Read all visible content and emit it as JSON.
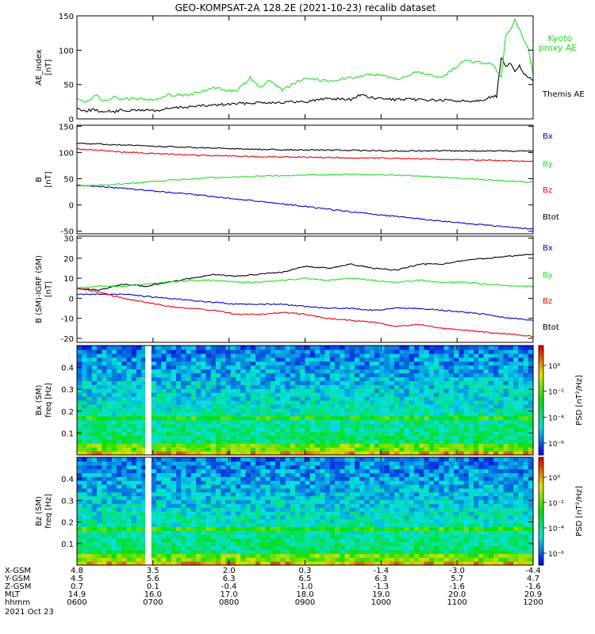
{
  "title": "GEO-KOMPSAT-2A 128.2E (2021-10-23) recalib dataset",
  "colors": {
    "black": "#000000",
    "green": "#22dd22",
    "red": "#e8000b",
    "blue": "#0000cc"
  },
  "chart_data": [
    {
      "id": "ae",
      "type": "line",
      "ylabel": "AE_index",
      "yunit": "[nT]",
      "ylim": [
        0,
        150
      ],
      "yticks": [
        0,
        50,
        100,
        150
      ],
      "series": [
        {
          "name": "Themis AE",
          "color": "black",
          "x": [
            0,
            0.02,
            0.04,
            0.05,
            0.06,
            0.08,
            0.1,
            0.12,
            0.15,
            0.18,
            0.2,
            0.25,
            0.3,
            0.35,
            0.4,
            0.45,
            0.5,
            0.55,
            0.6,
            0.62,
            0.65,
            0.7,
            0.75,
            0.8,
            0.85,
            0.88,
            0.9,
            0.92,
            0.93,
            0.94,
            0.95,
            0.96,
            0.97,
            0.98,
            0.99,
            1.0
          ],
          "y": [
            15,
            12,
            14,
            8,
            12,
            10,
            13,
            12,
            13,
            12,
            15,
            18,
            20,
            22,
            24,
            24,
            25,
            30,
            28,
            35,
            30,
            28,
            28,
            27,
            26,
            27,
            30,
            33,
            90,
            75,
            80,
            70,
            78,
            65,
            60,
            55
          ]
        },
        {
          "name": "Kyoto proxy AE",
          "color": "green",
          "x": [
            0,
            0.02,
            0.04,
            0.06,
            0.08,
            0.1,
            0.12,
            0.15,
            0.18,
            0.2,
            0.25,
            0.3,
            0.35,
            0.38,
            0.4,
            0.42,
            0.45,
            0.5,
            0.55,
            0.6,
            0.65,
            0.7,
            0.75,
            0.8,
            0.85,
            0.88,
            0.9,
            0.91,
            0.93,
            0.94,
            0.95,
            0.96,
            0.97,
            0.98,
            0.99,
            1.0
          ],
          "y": [
            28,
            25,
            35,
            25,
            32,
            28,
            30,
            28,
            30,
            35,
            35,
            45,
            40,
            60,
            45,
            55,
            42,
            60,
            55,
            60,
            65,
            58,
            68,
            60,
            85,
            82,
            80,
            80,
            60,
            120,
            130,
            145,
            130,
            115,
            100,
            65
          ]
        }
      ]
    },
    {
      "id": "b",
      "type": "line",
      "ylabel": "B",
      "yunit": "[nT]",
      "ylim": [
        -55,
        152
      ],
      "yticks": [
        -50,
        0,
        50,
        100,
        150
      ],
      "series": [
        {
          "name": "Btot",
          "color": "black",
          "x": [
            0,
            0.1,
            0.2,
            0.3,
            0.4,
            0.5,
            0.6,
            0.7,
            0.8,
            0.9,
            1.0
          ],
          "y": [
            118,
            114,
            111,
            108,
            106,
            105,
            104,
            103,
            103,
            103,
            103
          ]
        },
        {
          "name": "Bx",
          "color": "blue",
          "x": [
            0,
            0.1,
            0.2,
            0.3,
            0.4,
            0.5,
            0.6,
            0.7,
            0.8,
            0.9,
            1.0
          ],
          "y": [
            38,
            32,
            24,
            16,
            7,
            -3,
            -13,
            -22,
            -31,
            -39,
            -46
          ]
        },
        {
          "name": "Bz",
          "color": "red",
          "x": [
            0,
            0.1,
            0.2,
            0.3,
            0.4,
            0.5,
            0.6,
            0.7,
            0.8,
            0.9,
            1.0
          ],
          "y": [
            107,
            101,
            97,
            94,
            92,
            91,
            90,
            89,
            87,
            85,
            83
          ]
        },
        {
          "name": "By",
          "color": "green",
          "x": [
            0,
            0.1,
            0.2,
            0.3,
            0.4,
            0.5,
            0.6,
            0.7,
            0.8,
            0.9,
            1.0
          ],
          "y": [
            36,
            40,
            47,
            52,
            55,
            57,
            58,
            57,
            53,
            48,
            43
          ]
        }
      ]
    },
    {
      "id": "db",
      "type": "line",
      "ylabel": "B (SM)-IGRF (SM)",
      "yunit": "[nT]",
      "ylim": [
        -22,
        31
      ],
      "yticks": [
        -20,
        -10,
        0,
        10,
        20,
        30
      ],
      "series": [
        {
          "name": "Btot",
          "color": "black",
          "x": [
            0,
            0.05,
            0.1,
            0.15,
            0.2,
            0.25,
            0.3,
            0.35,
            0.4,
            0.45,
            0.5,
            0.55,
            0.6,
            0.65,
            0.7,
            0.75,
            0.8,
            0.85,
            0.9,
            0.95,
            1.0
          ],
          "y": [
            5,
            4,
            7,
            6,
            8,
            10,
            12,
            11,
            12,
            13,
            16,
            15,
            17,
            15,
            14,
            17,
            17,
            19,
            20,
            21,
            22
          ]
        },
        {
          "name": "By",
          "color": "green",
          "x": [
            0,
            0.05,
            0.1,
            0.15,
            0.2,
            0.25,
            0.3,
            0.35,
            0.4,
            0.45,
            0.5,
            0.55,
            0.6,
            0.65,
            0.7,
            0.75,
            0.8,
            0.85,
            0.9,
            0.95,
            1.0
          ],
          "y": [
            5,
            6,
            6,
            7,
            8,
            9,
            9,
            8,
            8,
            9,
            10,
            9,
            10,
            9,
            8,
            9,
            8,
            8,
            7,
            6,
            6
          ]
        },
        {
          "name": "Bx",
          "color": "blue",
          "x": [
            0,
            0.05,
            0.1,
            0.15,
            0.2,
            0.25,
            0.3,
            0.35,
            0.4,
            0.45,
            0.5,
            0.55,
            0.6,
            0.65,
            0.7,
            0.75,
            0.8,
            0.85,
            0.9,
            0.95,
            1.0
          ],
          "y": [
            2,
            2,
            2,
            1,
            0,
            -1,
            -2,
            -3,
            -3,
            -3,
            -4,
            -5,
            -5,
            -6,
            -5,
            -5,
            -6,
            -7,
            -8,
            -10,
            -11
          ]
        },
        {
          "name": "Bz",
          "color": "red",
          "x": [
            0,
            0.05,
            0.1,
            0.15,
            0.2,
            0.25,
            0.3,
            0.35,
            0.4,
            0.45,
            0.5,
            0.55,
            0.6,
            0.65,
            0.7,
            0.75,
            0.8,
            0.85,
            0.9,
            0.95,
            1.0
          ],
          "y": [
            5,
            3,
            0,
            -2,
            -4,
            -5,
            -6,
            -8,
            -8,
            -7,
            -8,
            -10,
            -11,
            -12,
            -14,
            -13,
            -15,
            -16,
            -17,
            -18,
            -19
          ]
        }
      ]
    },
    {
      "id": "spec_bx",
      "type": "heatmap",
      "ylabel": "Bx (SM)",
      "yunit": "freq [Hz]",
      "ylim": [
        0,
        0.5
      ],
      "yticks": [
        0.1,
        0.2,
        0.3,
        0.4
      ],
      "gap_x": 0.155,
      "colorbar": {
        "label": "PSD [nT²/Hz]",
        "ticks": [
          "10⁰",
          "10⁻²",
          "10⁻⁴",
          "10⁻⁶"
        ]
      }
    },
    {
      "id": "spec_bz",
      "type": "heatmap",
      "ylabel": "Bz (SM)",
      "yunit": "freq [Hz]",
      "ylim": [
        0,
        0.5
      ],
      "yticks": [
        0.1,
        0.2,
        0.3,
        0.4
      ],
      "gap_x": 0.155,
      "colorbar": {
        "label": "PSD [nT²/Hz]",
        "ticks": [
          "10⁰",
          "10⁻²",
          "10⁻⁴",
          "10⁻⁶"
        ]
      }
    }
  ],
  "ephemeris": {
    "row_labels": [
      "X-GSM",
      "Y-GSM",
      "Z-GSM",
      "MLT",
      "hhmm"
    ],
    "columns": [
      [
        "4.8",
        "4.5",
        "0.7",
        "14.9",
        "0600"
      ],
      [
        "3.5",
        "5.6",
        "0.1",
        "16.0",
        "0700"
      ],
      [
        "2.0",
        "6.3",
        "-0.4",
        "17.0",
        "0800"
      ],
      [
        "0.3",
        "6.5",
        "-1.0",
        "18.0",
        "0900"
      ],
      [
        "-1.4",
        "6.3",
        "-1.3",
        "19.0",
        "1000"
      ],
      [
        "-3.0",
        "5.7",
        "-1.6",
        "20.0",
        "1100"
      ],
      [
        "-4.4",
        "4.7",
        "-1.6",
        "20.9",
        "1200"
      ]
    ],
    "date": "2021 Oct 23"
  }
}
